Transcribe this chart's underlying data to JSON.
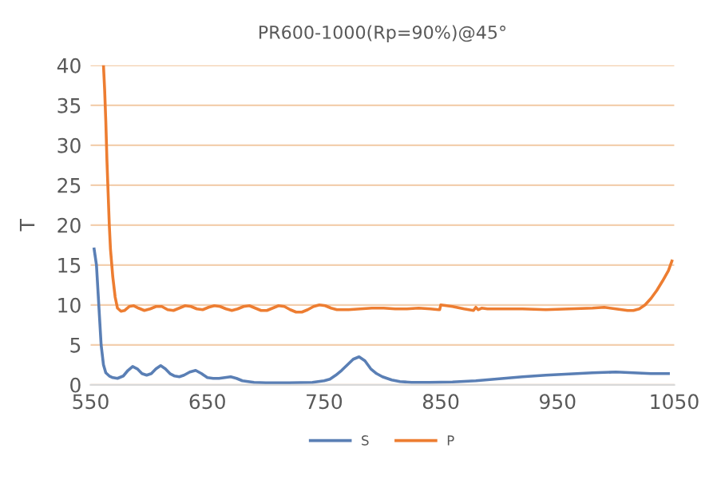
{
  "chart_data": {
    "type": "line",
    "title": "PR600-1000(Rp=90%)@45°",
    "ylabel": "T",
    "xlim": [
      550,
      1050
    ],
    "xticks": [
      550,
      650,
      750,
      850,
      950,
      1050
    ],
    "ylim": [
      0,
      40
    ],
    "yticks": [
      0,
      5,
      10,
      15,
      20,
      25,
      30,
      35,
      40
    ],
    "grid": "y",
    "legend": "bottom",
    "marker": "none",
    "line_style": "solid",
    "series": [
      {
        "name": "S",
        "color": "#5a7fb5",
        "x": [
          553,
          555,
          557,
          559,
          561,
          563,
          566,
          569,
          573,
          578,
          582,
          586,
          590,
          594,
          598,
          602,
          606,
          610,
          614,
          618,
          622,
          626,
          630,
          635,
          640,
          645,
          650,
          655,
          660,
          665,
          670,
          675,
          680,
          690,
          700,
          720,
          740,
          750,
          755,
          760,
          765,
          770,
          775,
          780,
          785,
          790,
          795,
          800,
          808,
          815,
          825,
          840,
          860,
          880,
          900,
          920,
          940,
          960,
          980,
          1000,
          1015,
          1030,
          1045
        ],
        "values": [
          17,
          15,
          10,
          5,
          2.5,
          1.5,
          1.1,
          0.9,
          0.8,
          1.1,
          1.8,
          2.3,
          2.0,
          1.4,
          1.2,
          1.4,
          2.0,
          2.4,
          2.0,
          1.4,
          1.1,
          1.0,
          1.2,
          1.6,
          1.8,
          1.4,
          0.9,
          0.8,
          0.8,
          0.9,
          1.0,
          0.8,
          0.5,
          0.3,
          0.25,
          0.25,
          0.3,
          0.5,
          0.7,
          1.2,
          1.8,
          2.5,
          3.2,
          3.5,
          3.0,
          2.0,
          1.4,
          1.0,
          0.6,
          0.4,
          0.3,
          0.3,
          0.35,
          0.5,
          0.75,
          1.0,
          1.2,
          1.35,
          1.5,
          1.6,
          1.5,
          1.4,
          1.4
        ]
      },
      {
        "name": "P",
        "color": "#ed7d31",
        "x": [
          561,
          562,
          563,
          564,
          565,
          566,
          567,
          569,
          571,
          573,
          576,
          579,
          583,
          587,
          591,
          596,
          601,
          606,
          611,
          616,
          621,
          626,
          631,
          636,
          641,
          646,
          651,
          656,
          661,
          666,
          671,
          676,
          681,
          686,
          691,
          696,
          701,
          706,
          711,
          716,
          721,
          726,
          731,
          736,
          741,
          746,
          751,
          756,
          761,
          771,
          781,
          791,
          801,
          811,
          821,
          831,
          841,
          848,
          849,
          850,
          855,
          860,
          870,
          878,
          880,
          882,
          885,
          890,
          900,
          920,
          940,
          960,
          980,
          990,
          1000,
          1010,
          1015,
          1020,
          1025,
          1030,
          1035,
          1040,
          1045,
          1048
        ],
        "values": [
          40,
          37,
          33,
          28,
          24,
          20,
          17,
          13.5,
          11,
          9.6,
          9.2,
          9.3,
          9.8,
          9.9,
          9.6,
          9.3,
          9.5,
          9.8,
          9.8,
          9.4,
          9.3,
          9.6,
          9.9,
          9.8,
          9.5,
          9.4,
          9.7,
          9.9,
          9.8,
          9.5,
          9.3,
          9.5,
          9.8,
          9.9,
          9.6,
          9.3,
          9.3,
          9.6,
          9.9,
          9.8,
          9.4,
          9.1,
          9.1,
          9.4,
          9.8,
          10.0,
          9.9,
          9.6,
          9.4,
          9.4,
          9.5,
          9.6,
          9.6,
          9.5,
          9.5,
          9.6,
          9.5,
          9.4,
          9.4,
          10.0,
          9.9,
          9.8,
          9.5,
          9.3,
          9.7,
          9.4,
          9.6,
          9.5,
          9.5,
          9.5,
          9.4,
          9.5,
          9.6,
          9.7,
          9.5,
          9.3,
          9.3,
          9.5,
          10.0,
          10.8,
          11.8,
          13,
          14.3,
          15.5
        ]
      }
    ]
  }
}
